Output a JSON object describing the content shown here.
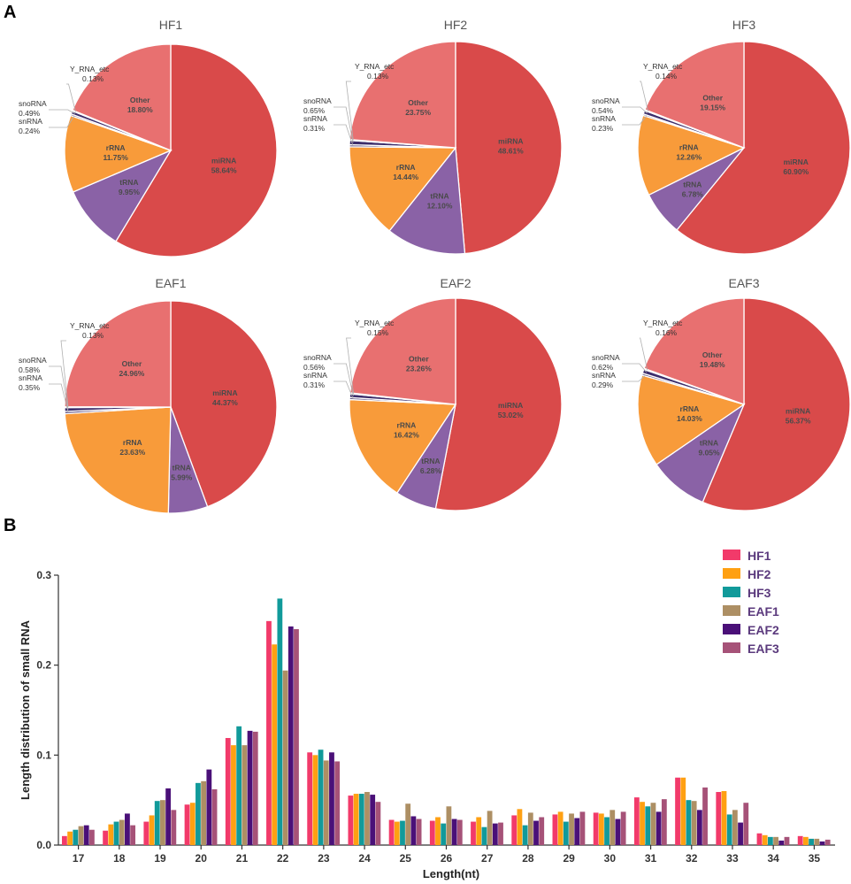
{
  "figure": {
    "panel_a_label": "A",
    "panel_b_label": "B"
  },
  "colors": {
    "miRNA": "#d94a4a",
    "tRNA": "#8a62a6",
    "rRNA": "#f89b3a",
    "snRNA": "#5c4d80",
    "snoRNA": "#3d2d6b",
    "Y_RNA_etc": "#9e9ec2",
    "Other": "#e87070",
    "HF1": "#f23a6a",
    "HF2": "#ffa012",
    "HF3": "#119a9a",
    "EAF1": "#ad8f64",
    "EAF2": "#4a1078",
    "EAF3": "#a65278"
  },
  "chart_data": [
    {
      "type": "pie",
      "title": "HF1",
      "slices": [
        {
          "label": "miRNA",
          "value": 58.64,
          "text": "58.64%"
        },
        {
          "label": "tRNA",
          "value": 9.95,
          "text": "9.95%"
        },
        {
          "label": "rRNA",
          "value": 11.75,
          "text": "11.75%"
        },
        {
          "label": "snRNA",
          "value": 0.24,
          "text": "0.24%"
        },
        {
          "label": "snoRNA",
          "value": 0.49,
          "text": "0.49%"
        },
        {
          "label": "Y_RNA_etc",
          "value": 0.13,
          "text": "0.13%"
        },
        {
          "label": "Other",
          "value": 18.8,
          "text": "18.80%"
        }
      ]
    },
    {
      "type": "pie",
      "title": "HF2",
      "slices": [
        {
          "label": "miRNA",
          "value": 48.61,
          "text": "48.61%"
        },
        {
          "label": "tRNA",
          "value": 12.1,
          "text": "12.10%"
        },
        {
          "label": "rRNA",
          "value": 14.44,
          "text": "14.44%"
        },
        {
          "label": "snRNA",
          "value": 0.31,
          "text": "0.31%"
        },
        {
          "label": "snoRNA",
          "value": 0.65,
          "text": "0.65%"
        },
        {
          "label": "Y_RNA_etc",
          "value": 0.13,
          "text": "0.13%"
        },
        {
          "label": "Other",
          "value": 23.75,
          "text": "23.75%"
        }
      ]
    },
    {
      "type": "pie",
      "title": "HF3",
      "slices": [
        {
          "label": "miRNA",
          "value": 60.9,
          "text": "60.90%"
        },
        {
          "label": "tRNA",
          "value": 6.78,
          "text": "6.78%"
        },
        {
          "label": "rRNA",
          "value": 12.26,
          "text": "12.26%"
        },
        {
          "label": "snRNA",
          "value": 0.23,
          "text": "0.23%"
        },
        {
          "label": "snoRNA",
          "value": 0.54,
          "text": "0.54%"
        },
        {
          "label": "Y_RNA_etc",
          "value": 0.14,
          "text": "0.14%"
        },
        {
          "label": "Other",
          "value": 19.15,
          "text": "19.15%"
        }
      ]
    },
    {
      "type": "pie",
      "title": "EAF1",
      "slices": [
        {
          "label": "miRNA",
          "value": 44.37,
          "text": "44.37%"
        },
        {
          "label": "tRNA",
          "value": 5.99,
          "text": "5.99%"
        },
        {
          "label": "rRNA",
          "value": 23.63,
          "text": "23.63%"
        },
        {
          "label": "snRNA",
          "value": 0.35,
          "text": "0.35%"
        },
        {
          "label": "snoRNA",
          "value": 0.58,
          "text": "0.58%"
        },
        {
          "label": "Y_RNA_etc",
          "value": 0.13,
          "text": "0.13%"
        },
        {
          "label": "Other",
          "value": 24.96,
          "text": "24.96%"
        }
      ]
    },
    {
      "type": "pie",
      "title": "EAF2",
      "slices": [
        {
          "label": "miRNA",
          "value": 53.02,
          "text": "53.02%"
        },
        {
          "label": "tRNA",
          "value": 6.28,
          "text": "6.28%"
        },
        {
          "label": "rRNA",
          "value": 16.42,
          "text": "16.42%"
        },
        {
          "label": "snRNA",
          "value": 0.31,
          "text": "0.31%"
        },
        {
          "label": "snoRNA",
          "value": 0.56,
          "text": "0.56%"
        },
        {
          "label": "Y_RNA_etc",
          "value": 0.15,
          "text": "0.15%"
        },
        {
          "label": "Other",
          "value": 23.26,
          "text": "23.26%"
        }
      ]
    },
    {
      "type": "pie",
      "title": "EAF3",
      "slices": [
        {
          "label": "miRNA",
          "value": 56.37,
          "text": "56.37%"
        },
        {
          "label": "tRNA",
          "value": 9.05,
          "text": "9.05%"
        },
        {
          "label": "rRNA",
          "value": 14.03,
          "text": "14.03%"
        },
        {
          "label": "snRNA",
          "value": 0.29,
          "text": "0.29%"
        },
        {
          "label": "snoRNA",
          "value": 0.62,
          "text": "0.62%"
        },
        {
          "label": "Y_RNA_etc",
          "value": 0.16,
          "text": "0.16%"
        },
        {
          "label": "Other",
          "value": 19.48,
          "text": "19.48%"
        }
      ]
    },
    {
      "type": "bar",
      "title": "",
      "xlabel": "Length(nt)",
      "ylabel": "Length distribution of small RNA",
      "ylim": [
        0,
        0.3
      ],
      "yticks": [
        "0.0",
        "0.1",
        "0.2",
        "0.3"
      ],
      "categories": [
        "17",
        "18",
        "19",
        "20",
        "21",
        "22",
        "23",
        "24",
        "25",
        "26",
        "27",
        "28",
        "29",
        "30",
        "31",
        "32",
        "33",
        "34",
        "35"
      ],
      "legend_position": "top-right",
      "series": [
        {
          "name": "HF1",
          "values": [
            0.01,
            0.016,
            0.026,
            0.045,
            0.119,
            0.249,
            0.103,
            0.055,
            0.028,
            0.027,
            0.026,
            0.033,
            0.034,
            0.036,
            0.053,
            0.075,
            0.059,
            0.013,
            0.01
          ]
        },
        {
          "name": "HF2",
          "values": [
            0.015,
            0.023,
            0.033,
            0.047,
            0.111,
            0.223,
            0.1,
            0.057,
            0.026,
            0.031,
            0.031,
            0.04,
            0.037,
            0.035,
            0.048,
            0.075,
            0.06,
            0.011,
            0.009
          ]
        },
        {
          "name": "HF3",
          "values": [
            0.017,
            0.026,
            0.049,
            0.069,
            0.132,
            0.274,
            0.106,
            0.057,
            0.027,
            0.024,
            0.02,
            0.022,
            0.026,
            0.031,
            0.043,
            0.05,
            0.034,
            0.009,
            0.007
          ]
        },
        {
          "name": "EAF1",
          "values": [
            0.021,
            0.028,
            0.05,
            0.071,
            0.111,
            0.194,
            0.094,
            0.059,
            0.046,
            0.043,
            0.038,
            0.036,
            0.035,
            0.039,
            0.047,
            0.049,
            0.039,
            0.009,
            0.007
          ]
        },
        {
          "name": "EAF2",
          "values": [
            0.022,
            0.035,
            0.063,
            0.084,
            0.127,
            0.243,
            0.103,
            0.056,
            0.032,
            0.029,
            0.024,
            0.027,
            0.03,
            0.029,
            0.037,
            0.039,
            0.025,
            0.005,
            0.004
          ]
        },
        {
          "name": "EAF3",
          "values": [
            0.017,
            0.022,
            0.039,
            0.062,
            0.126,
            0.24,
            0.093,
            0.048,
            0.029,
            0.028,
            0.025,
            0.031,
            0.037,
            0.037,
            0.051,
            0.064,
            0.047,
            0.009,
            0.006
          ]
        }
      ]
    }
  ]
}
